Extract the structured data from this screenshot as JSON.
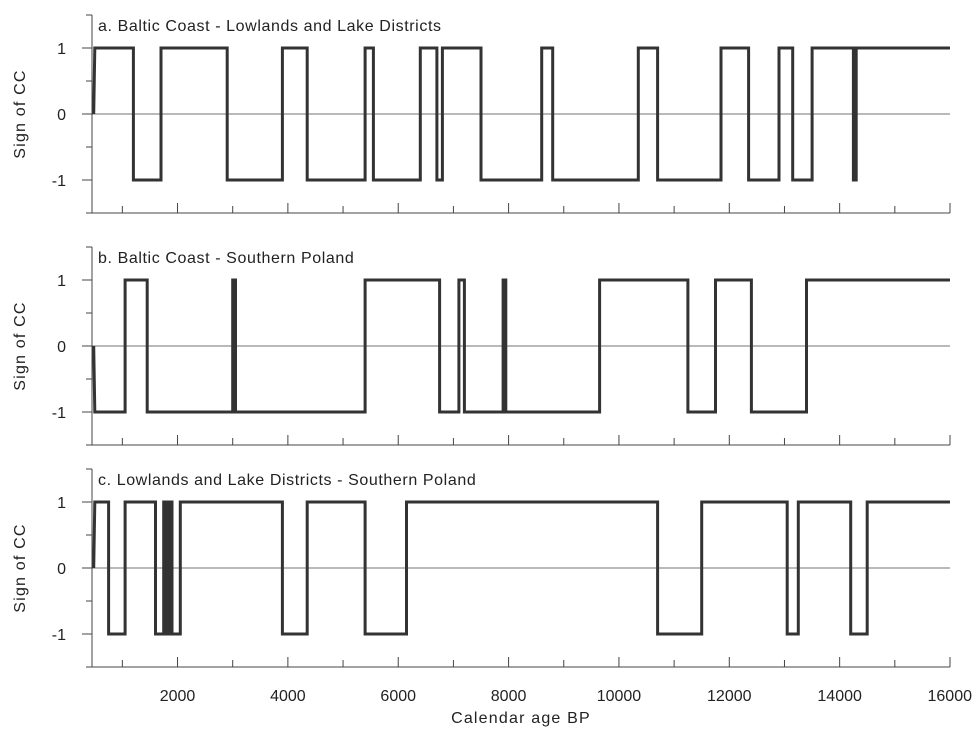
{
  "chart_data": [
    {
      "type": "line",
      "title": "a. Baltic Coast - Lowlands and Lake Districts",
      "xlabel": "",
      "ylabel": "Sign of CC",
      "xlim": [
        450,
        16000
      ],
      "ylim": [
        -1.5,
        1.5
      ],
      "yticks": [
        1,
        0,
        -1
      ],
      "ytick_labels": [
        "1",
        "0",
        "-1"
      ],
      "grid": false,
      "series": [
        {
          "values": [
            [
              480,
              0
            ],
            [
              500,
              1
            ],
            [
              1200,
              1
            ],
            [
              1200,
              -1
            ],
            [
              1700,
              -1
            ],
            [
              1700,
              1
            ],
            [
              2900,
              1
            ],
            [
              2900,
              -1
            ],
            [
              3900,
              -1
            ],
            [
              3900,
              1
            ],
            [
              4350,
              1
            ],
            [
              4350,
              -1
            ],
            [
              5400,
              -1
            ],
            [
              5400,
              1
            ],
            [
              5550,
              1
            ],
            [
              5550,
              -1
            ],
            [
              6400,
              -1
            ],
            [
              6400,
              1
            ],
            [
              6700,
              1
            ],
            [
              6700,
              -1
            ],
            [
              6800,
              -1
            ],
            [
              6800,
              1
            ],
            [
              7500,
              1
            ],
            [
              7500,
              -1
            ],
            [
              8600,
              -1
            ],
            [
              8600,
              1
            ],
            [
              8800,
              1
            ],
            [
              8800,
              -1
            ],
            [
              10350,
              -1
            ],
            [
              10350,
              1
            ],
            [
              10700,
              1
            ],
            [
              10700,
              -1
            ],
            [
              11850,
              -1
            ],
            [
              11850,
              1
            ],
            [
              12350,
              1
            ],
            [
              12350,
              -1
            ],
            [
              12900,
              -1
            ],
            [
              12900,
              1
            ],
            [
              13150,
              1
            ],
            [
              13150,
              -1
            ],
            [
              13500,
              -1
            ],
            [
              13500,
              1
            ],
            [
              14250,
              1
            ],
            [
              14250,
              -1
            ],
            [
              14300,
              -1
            ],
            [
              14300,
              1
            ],
            [
              16000,
              1
            ]
          ]
        }
      ]
    },
    {
      "type": "line",
      "title": "b. Baltic Coast - Southern Poland",
      "xlabel": "",
      "ylabel": "Sign of CC",
      "xlim": [
        450,
        16000
      ],
      "ylim": [
        -1.5,
        1.5
      ],
      "yticks": [
        1,
        0,
        -1
      ],
      "ytick_labels": [
        "1",
        "0",
        "-1"
      ],
      "grid": false,
      "series": [
        {
          "values": [
            [
              480,
              0
            ],
            [
              500,
              -1
            ],
            [
              1050,
              -1
            ],
            [
              1050,
              1
            ],
            [
              1450,
              1
            ],
            [
              1450,
              -1
            ],
            [
              3000,
              -1
            ],
            [
              3000,
              1
            ],
            [
              3050,
              1
            ],
            [
              3050,
              -1
            ],
            [
              5400,
              -1
            ],
            [
              5400,
              1
            ],
            [
              6750,
              1
            ],
            [
              6750,
              -1
            ],
            [
              7100,
              -1
            ],
            [
              7100,
              1
            ],
            [
              7200,
              1
            ],
            [
              7200,
              -1
            ],
            [
              7900,
              -1
            ],
            [
              7900,
              1
            ],
            [
              7950,
              1
            ],
            [
              7950,
              -1
            ],
            [
              9650,
              -1
            ],
            [
              9650,
              1
            ],
            [
              11250,
              1
            ],
            [
              11250,
              -1
            ],
            [
              11750,
              -1
            ],
            [
              11750,
              1
            ],
            [
              12400,
              1
            ],
            [
              12400,
              -1
            ],
            [
              13400,
              -1
            ],
            [
              13400,
              1
            ],
            [
              16000,
              1
            ]
          ]
        }
      ]
    },
    {
      "type": "line",
      "title": "c. Lowlands and Lake Districts - Southern Poland",
      "xlabel": "Calendar age BP",
      "ylabel": "Sign of CC",
      "xlim": [
        450,
        16000
      ],
      "ylim": [
        -1.5,
        1.5
      ],
      "yticks": [
        1,
        0,
        -1
      ],
      "ytick_labels": [
        "1",
        "0",
        "-1"
      ],
      "xticks": [
        2000,
        4000,
        6000,
        8000,
        10000,
        12000,
        14000,
        16000
      ],
      "xtick_labels": [
        "2000",
        "4000",
        "6000",
        "8000",
        "10000",
        "12000",
        "14000",
        "16000"
      ],
      "grid": false,
      "series": [
        {
          "values": [
            [
              480,
              0
            ],
            [
              500,
              1
            ],
            [
              750,
              1
            ],
            [
              750,
              -1
            ],
            [
              1050,
              -1
            ],
            [
              1050,
              1
            ],
            [
              1600,
              1
            ],
            [
              1600,
              -1
            ],
            [
              1750,
              -1
            ],
            [
              1750,
              1
            ],
            [
              1800,
              1
            ],
            [
              1800,
              -1
            ],
            [
              1850,
              -1
            ],
            [
              1850,
              1
            ],
            [
              1900,
              1
            ],
            [
              1900,
              -1
            ],
            [
              2050,
              -1
            ],
            [
              2050,
              1
            ],
            [
              3900,
              1
            ],
            [
              3900,
              -1
            ],
            [
              4350,
              -1
            ],
            [
              4350,
              1
            ],
            [
              5400,
              1
            ],
            [
              5400,
              -1
            ],
            [
              6150,
              -1
            ],
            [
              6150,
              1
            ],
            [
              10700,
              1
            ],
            [
              10700,
              -1
            ],
            [
              11500,
              -1
            ],
            [
              11500,
              1
            ],
            [
              13050,
              1
            ],
            [
              13050,
              -1
            ],
            [
              13250,
              -1
            ],
            [
              13250,
              1
            ],
            [
              14200,
              1
            ],
            [
              14200,
              -1
            ],
            [
              14500,
              -1
            ],
            [
              14500,
              1
            ],
            [
              16000,
              1
            ]
          ]
        }
      ]
    }
  ]
}
